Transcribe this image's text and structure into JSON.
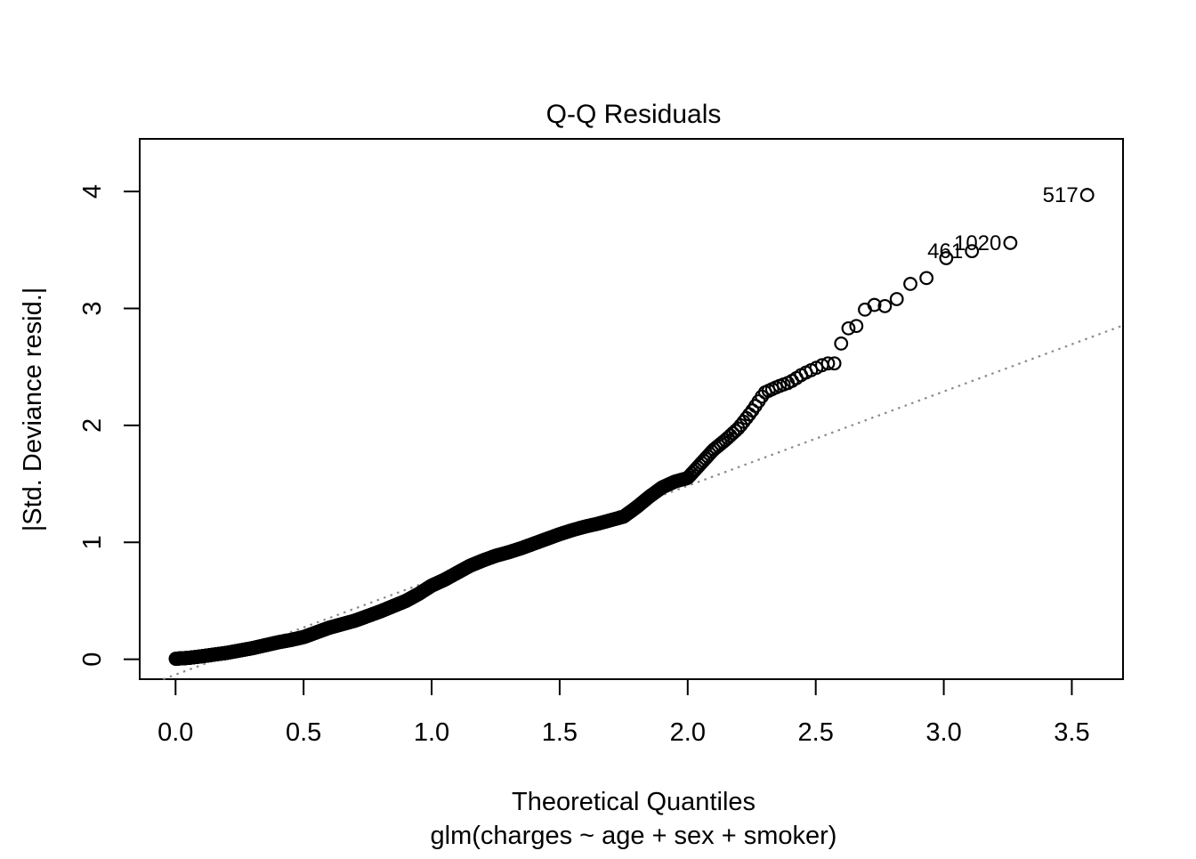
{
  "title": "Q-Q Residuals",
  "x_axis": {
    "label": "Theoretical Quantiles",
    "sub_label": "glm(charges ~ age + sex + smoker)",
    "ticks": [
      0,
      0.5,
      1,
      1.5,
      2,
      2.5,
      3,
      3.5
    ],
    "tick_labels": [
      "0.0",
      "0.5",
      "1.0",
      "1.5",
      "2.0",
      "2.5",
      "3.0",
      "3.5"
    ]
  },
  "y_axis": {
    "label": "|Std. Deviance resid.|",
    "ticks": [
      0,
      1,
      2,
      3,
      4
    ],
    "tick_labels": [
      "0",
      "1",
      "2",
      "3",
      "4"
    ]
  },
  "chart_data": {
    "type": "scatter",
    "subtype": "half-normal-qq-plot",
    "n_points": 1338,
    "xlim": [
      -0.14,
      3.7
    ],
    "ylim": [
      -0.17,
      4.45
    ],
    "grid": false,
    "legend": null,
    "point_color": "#000000",
    "point_radius_px": 6.8,
    "point_stroke_px": 2.2,
    "curve_landmarks": [
      [
        0.0,
        0.005
      ],
      [
        0.05,
        0.012
      ],
      [
        0.1,
        0.025
      ],
      [
        0.15,
        0.04
      ],
      [
        0.2,
        0.055
      ],
      [
        0.25,
        0.075
      ],
      [
        0.3,
        0.095
      ],
      [
        0.35,
        0.12
      ],
      [
        0.4,
        0.145
      ],
      [
        0.45,
        0.165
      ],
      [
        0.5,
        0.19
      ],
      [
        0.55,
        0.23
      ],
      [
        0.6,
        0.27
      ],
      [
        0.65,
        0.3
      ],
      [
        0.7,
        0.33
      ],
      [
        0.75,
        0.37
      ],
      [
        0.8,
        0.41
      ],
      [
        0.85,
        0.455
      ],
      [
        0.9,
        0.5
      ],
      [
        0.95,
        0.56
      ],
      [
        1.0,
        0.63
      ],
      [
        1.05,
        0.68
      ],
      [
        1.1,
        0.74
      ],
      [
        1.15,
        0.8
      ],
      [
        1.2,
        0.845
      ],
      [
        1.25,
        0.885
      ],
      [
        1.3,
        0.915
      ],
      [
        1.35,
        0.95
      ],
      [
        1.4,
        0.99
      ],
      [
        1.45,
        1.03
      ],
      [
        1.5,
        1.07
      ],
      [
        1.55,
        1.105
      ],
      [
        1.6,
        1.135
      ],
      [
        1.65,
        1.16
      ],
      [
        1.7,
        1.19
      ],
      [
        1.75,
        1.22
      ],
      [
        1.8,
        1.3
      ],
      [
        1.85,
        1.39
      ],
      [
        1.9,
        1.47
      ],
      [
        1.95,
        1.52
      ],
      [
        2.0,
        1.55
      ],
      [
        2.05,
        1.67
      ],
      [
        2.1,
        1.79
      ],
      [
        2.15,
        1.88
      ],
      [
        2.2,
        1.98
      ],
      [
        2.25,
        2.12
      ],
      [
        2.3,
        2.28
      ],
      [
        2.35,
        2.33
      ],
      [
        2.4,
        2.37
      ],
      [
        2.45,
        2.44
      ],
      [
        2.5,
        2.49
      ],
      [
        2.54,
        2.53
      ]
    ],
    "tail_values": [
      2.7,
      2.83,
      2.85,
      2.99,
      3.03,
      3.02,
      3.08,
      3.21,
      3.26,
      3.43
    ],
    "labeled_points": [
      {
        "id": "461",
        "x": 3.11,
        "y": 3.49
      },
      {
        "id": "1020",
        "x": 3.26,
        "y": 3.56
      },
      {
        "id": "517",
        "x": 3.56,
        "y": 3.97
      }
    ],
    "ref_line": {
      "slope": 0.807,
      "intercept": -0.131,
      "style": "dotted",
      "color": "#8a8a8a"
    }
  }
}
